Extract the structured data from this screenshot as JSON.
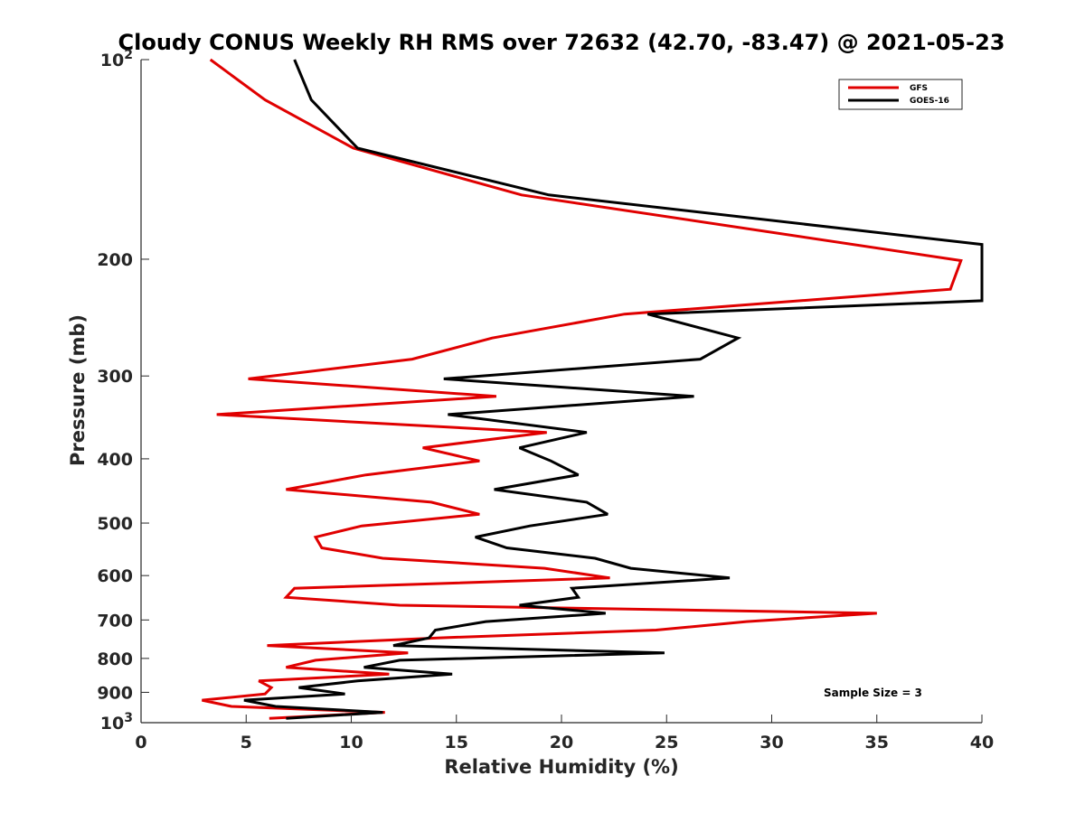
{
  "chart_data": {
    "type": "line",
    "title": "Cloudy CONUS Weekly RH RMS over 72632 (42.70, -83.47) @ 2021-05-23",
    "xlabel": "Relative Humidity (%)",
    "ylabel": "Pressure (mb)",
    "xlim": [
      0,
      40
    ],
    "ylim": [
      100,
      1000
    ],
    "yscale": "log",
    "y_reversed": true,
    "grid": false,
    "legend_position": "top-right",
    "x_ticks": [
      0,
      5,
      10,
      15,
      20,
      25,
      30,
      35,
      40
    ],
    "x_tick_labels": [
      "0",
      "5",
      "10",
      "15",
      "20",
      "25",
      "30",
      "35",
      "40"
    ],
    "y_ticks": [
      100,
      200,
      300,
      400,
      500,
      600,
      700,
      800,
      900,
      1000
    ],
    "y_tick_labels": [
      {
        "base": "10",
        "exp": "2"
      },
      {
        "base": "200",
        "exp": ""
      },
      {
        "base": "300",
        "exp": ""
      },
      {
        "base": "400",
        "exp": ""
      },
      {
        "base": "500",
        "exp": ""
      },
      {
        "base": "600",
        "exp": ""
      },
      {
        "base": "700",
        "exp": ""
      },
      {
        "base": "800",
        "exp": ""
      },
      {
        "base": "900",
        "exp": ""
      },
      {
        "base": "10",
        "exp": "3"
      }
    ],
    "annotation": "Sample Size = 3",
    "series": [
      {
        "name": "GFS",
        "color": "#e00000",
        "points": [
          [
            3.3,
            100
          ],
          [
            5.9,
            115
          ],
          [
            10.1,
            136
          ],
          [
            18.1,
            160
          ],
          [
            39.0,
            201
          ],
          [
            38.5,
            222
          ],
          [
            23.0,
            242
          ],
          [
            16.7,
            263
          ],
          [
            12.9,
            283
          ],
          [
            5.1,
            303
          ],
          [
            16.9,
            322
          ],
          [
            3.6,
            343
          ],
          [
            19.3,
            365
          ],
          [
            13.4,
            385
          ],
          [
            16.1,
            403
          ],
          [
            10.7,
            423
          ],
          [
            6.9,
            445
          ],
          [
            13.8,
            465
          ],
          [
            16.1,
            485
          ],
          [
            10.5,
            505
          ],
          [
            8.3,
            525
          ],
          [
            8.6,
            545
          ],
          [
            11.5,
            565
          ],
          [
            19.2,
            585
          ],
          [
            22.3,
            605
          ],
          [
            7.3,
            627
          ],
          [
            6.9,
            647
          ],
          [
            12.3,
            665
          ],
          [
            35.0,
            684
          ],
          [
            28.8,
            704
          ],
          [
            24.5,
            725
          ],
          [
            14.1,
            745
          ],
          [
            6.0,
            765
          ],
          [
            12.7,
            785
          ],
          [
            8.3,
            805
          ],
          [
            6.9,
            825
          ],
          [
            11.8,
            845
          ],
          [
            5.6,
            865
          ],
          [
            6.2,
            885
          ],
          [
            5.9,
            905
          ],
          [
            2.9,
            925
          ],
          [
            4.3,
            945
          ],
          [
            11.6,
            965
          ],
          [
            6.1,
            985
          ]
        ]
      },
      {
        "name": "GOES-16",
        "color": "#000000",
        "points": [
          [
            7.3,
            100
          ],
          [
            8.1,
            115
          ],
          [
            10.3,
            136
          ],
          [
            19.4,
            160
          ],
          [
            40.0,
            190
          ],
          [
            40.0,
            231
          ],
          [
            24.1,
            242
          ],
          [
            28.4,
            263
          ],
          [
            26.6,
            283
          ],
          [
            14.4,
            303
          ],
          [
            26.3,
            322
          ],
          [
            14.6,
            343
          ],
          [
            21.2,
            365
          ],
          [
            18.0,
            385
          ],
          [
            19.5,
            403
          ],
          [
            20.8,
            423
          ],
          [
            16.8,
            445
          ],
          [
            21.2,
            465
          ],
          [
            22.2,
            485
          ],
          [
            18.5,
            505
          ],
          [
            15.9,
            525
          ],
          [
            17.4,
            545
          ],
          [
            21.6,
            565
          ],
          [
            23.3,
            585
          ],
          [
            28.0,
            605
          ],
          [
            20.5,
            627
          ],
          [
            20.8,
            647
          ],
          [
            18.0,
            665
          ],
          [
            22.1,
            684
          ],
          [
            16.4,
            704
          ],
          [
            14.0,
            725
          ],
          [
            13.7,
            745
          ],
          [
            12.0,
            765
          ],
          [
            24.9,
            785
          ],
          [
            12.3,
            805
          ],
          [
            10.6,
            825
          ],
          [
            14.8,
            845
          ],
          [
            10.3,
            865
          ],
          [
            7.5,
            885
          ],
          [
            9.7,
            905
          ],
          [
            4.9,
            925
          ],
          [
            6.4,
            945
          ],
          [
            11.5,
            965
          ],
          [
            6.9,
            985
          ]
        ]
      }
    ]
  }
}
